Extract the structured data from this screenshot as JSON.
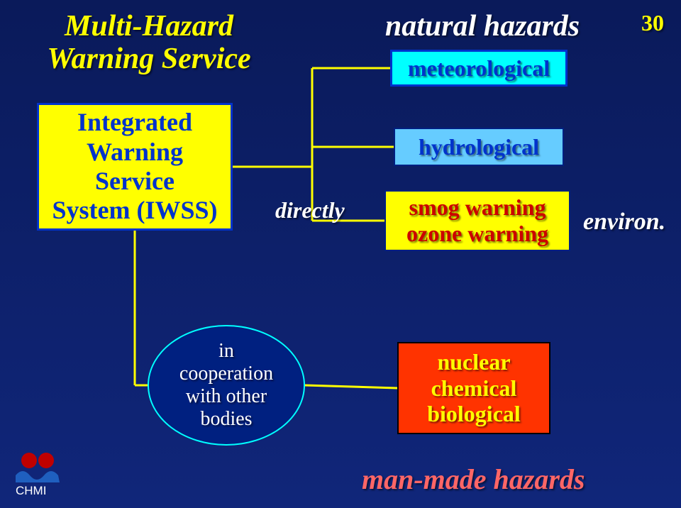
{
  "background": {
    "gradient_top": "#0a1a5a",
    "gradient_bottom": "#10267a"
  },
  "page_number": {
    "text": "30",
    "color": "#ffff00",
    "fontsize": 32
  },
  "title_left": {
    "line1": "Multi-Hazard",
    "line2": "Warning Service",
    "color": "#ffff00",
    "fontsize": 42
  },
  "title_right": {
    "text": "natural hazards",
    "color": "#ffffff",
    "fontsize": 42
  },
  "iwss_box": {
    "line1": "Integrated",
    "line2": "Warning",
    "line3": "Service",
    "line4": "System (IWSS)",
    "fill": "#ffff00",
    "border_color": "#0033cc",
    "border_width": 3,
    "text_color": "#0033cc",
    "fontsize": 36
  },
  "meteorological_box": {
    "text": "meteorological",
    "fill": "#00ffff",
    "border_color": "#0033cc",
    "border_width": 3,
    "text_color": "#0033cc",
    "fontsize": 32
  },
  "hydrological_box": {
    "text": "hydrological",
    "fill": "#66ccff",
    "border_color": "#002080",
    "border_width": 2,
    "text_color": "#0033cc",
    "fontsize": 32
  },
  "smog_box": {
    "line1": "smog warning",
    "line2": "ozone warning",
    "fill": "#ffff00",
    "border_color": "#002080",
    "border_width": 2,
    "text_color": "#cc0000",
    "fontsize": 32
  },
  "nuclear_box": {
    "line1": "nuclear",
    "line2": "chemical",
    "line3": "biological",
    "fill": "#ff3300",
    "border_color": "#000000",
    "border_width": 2,
    "text_color": "#ffff00",
    "fontsize": 32
  },
  "directly_label": {
    "text": "directly",
    "color": "#ffffff",
    "fontsize": 32
  },
  "environ_label": {
    "text": "environ.",
    "color": "#ffffff",
    "fontsize": 34
  },
  "manmade_label": {
    "text": "man-made hazards",
    "color": "#ff6666",
    "fontsize": 40
  },
  "cooperation_ellipse": {
    "line1": "in",
    "line2": "cooperation",
    "line3": "with other",
    "line4": "bodies",
    "fill": "#002080",
    "border_color": "#00ffff",
    "border_width": 2,
    "text_color": "#ffffff",
    "fontsize": 28
  },
  "connector": {
    "stroke": "#ffff00",
    "stroke_width": 3
  },
  "chmi": {
    "label": "CHMI",
    "label_color": "#ffffff",
    "circle_color": "#c00000",
    "wave_color": "#1f5fbf"
  }
}
